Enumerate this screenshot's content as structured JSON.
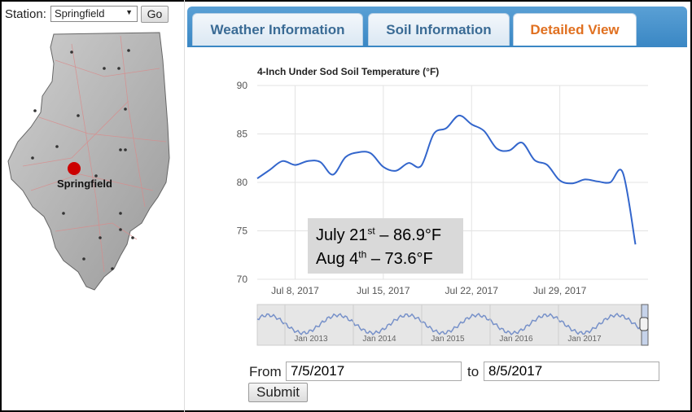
{
  "station": {
    "label": "Station:",
    "selected": "Springfield",
    "go_label": "Go"
  },
  "map": {
    "city_label": "Springfield",
    "marker_color": "#cc0000"
  },
  "tabs": [
    {
      "label": "Weather Information",
      "active": false
    },
    {
      "label": "Soil Information",
      "active": false
    },
    {
      "label": "Detailed View",
      "active": true
    }
  ],
  "colors": {
    "tab_active_text": "#e07020",
    "tab_text": "#3a6b95",
    "tabbar": "#3a87c4",
    "series_line": "#3366cc"
  },
  "chart_data": {
    "type": "line",
    "title": "4-Inch Under Sod Soil Temperature (°F)",
    "ylim": [
      70,
      90
    ],
    "yticks": [
      70,
      75,
      80,
      85,
      90
    ],
    "xlim": [
      "2017-07-05",
      "2017-08-05"
    ],
    "xticks": [
      {
        "date": "2017-07-08",
        "label": "Jul 8, 2017"
      },
      {
        "date": "2017-07-15",
        "label": "Jul 15, 2017"
      },
      {
        "date": "2017-07-22",
        "label": "Jul 22, 2017"
      },
      {
        "date": "2017-07-29",
        "label": "Jul 29, 2017"
      }
    ],
    "grid": true,
    "series": [
      {
        "x": [
          "2017-07-05",
          "2017-07-06",
          "2017-07-07",
          "2017-07-08",
          "2017-07-09",
          "2017-07-10",
          "2017-07-11",
          "2017-07-12",
          "2017-07-13",
          "2017-07-14",
          "2017-07-15",
          "2017-07-16",
          "2017-07-17",
          "2017-07-18",
          "2017-07-19",
          "2017-07-20",
          "2017-07-21",
          "2017-07-22",
          "2017-07-23",
          "2017-07-24",
          "2017-07-25",
          "2017-07-26",
          "2017-07-27",
          "2017-07-28",
          "2017-07-29",
          "2017-07-30",
          "2017-07-31",
          "2017-08-01",
          "2017-08-02",
          "2017-08-03",
          "2017-08-04"
        ],
        "values": [
          80.4,
          81.3,
          82.2,
          81.8,
          82.2,
          82.1,
          80.8,
          82.6,
          83.1,
          83.0,
          81.6,
          81.2,
          82.0,
          81.7,
          85.0,
          85.6,
          86.9,
          86.0,
          85.3,
          83.5,
          83.3,
          84.1,
          82.3,
          81.8,
          80.2,
          79.9,
          80.3,
          80.1,
          80.0,
          81.0,
          73.6
        ]
      }
    ],
    "navigator": {
      "labels": [
        "Jan 2013",
        "Jan 2014",
        "Jan 2015",
        "Jan 2016",
        "Jan 2017"
      ]
    }
  },
  "callout": {
    "line1_main": "July 21",
    "line1_sup": "st",
    "line1_value": " – 86.9°F",
    "line2_main": "Aug 4",
    "line2_sup": "th",
    "line2_value": "  – 73.6°F"
  },
  "form": {
    "from_label": "From",
    "from_value": "7/5/2017",
    "to_label": "to",
    "to_value": "8/5/2017",
    "submit_label": "Submit"
  }
}
